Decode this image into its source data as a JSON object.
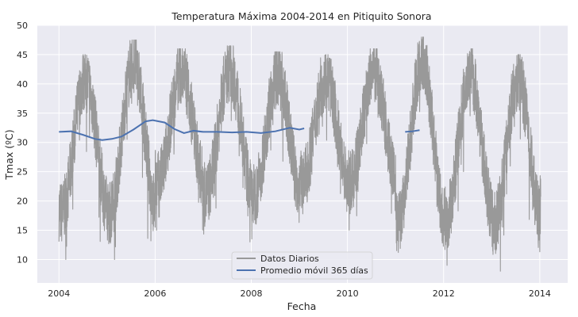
{
  "chart_data": {
    "type": "line",
    "title": "Temperatura Máxima 2004-2014 en Pitiquito Sonora",
    "xlabel": "Fecha",
    "ylabel": "Tmax (ºC)",
    "xlim": [
      2003.55,
      2014.58
    ],
    "ylim": [
      6,
      50
    ],
    "x_ticks": [
      2004,
      2006,
      2008,
      2010,
      2012,
      2014
    ],
    "x_tick_labels": [
      "2004",
      "2006",
      "2008",
      "2010",
      "2012",
      "2014"
    ],
    "y_ticks": [
      10,
      15,
      20,
      25,
      30,
      35,
      40,
      45,
      50
    ],
    "y_tick_labels": [
      "10",
      "15",
      "20",
      "25",
      "30",
      "35",
      "40",
      "45",
      "50"
    ],
    "grid": true,
    "legend_position": "lower-center",
    "colors": {
      "background": "#eaeaf2",
      "grid": "#ffffff",
      "daily": "#999999",
      "rolling": "#4c72b0"
    },
    "series": [
      {
        "name": "Datos Diarios",
        "style": "daily-noisy",
        "summer_peaks": [
          {
            "year": 2004,
            "min": 10,
            "max": 45
          },
          {
            "year": 2005,
            "min": 10,
            "max": 47.5
          },
          {
            "year": 2006,
            "min": 15,
            "max": 46
          },
          {
            "year": 2007,
            "min": 13,
            "max": 46.5
          },
          {
            "year": 2008,
            "min": 13,
            "max": 45.5
          },
          {
            "year": 2009,
            "min": 15,
            "max": 45
          },
          {
            "year": 2010,
            "min": 15,
            "max": 46
          },
          {
            "year": 2011,
            "min": 8,
            "max": 48
          },
          {
            "year": 2012,
            "min": 9,
            "max": 46
          },
          {
            "year": 2013,
            "min": 8,
            "max": 45
          },
          {
            "year": 2014,
            "min": 11,
            "max": 26
          }
        ],
        "x_start": 2004.0,
        "x_end": 2014.02
      },
      {
        "name": "Promedio móvil 365 días",
        "x": [
          2004.0,
          2004.25,
          2004.5,
          2004.75,
          2004.9,
          2005.1,
          2005.3,
          2005.55,
          2005.8,
          2005.95,
          2006.2,
          2006.4,
          2006.6,
          2006.8,
          2007.0,
          2007.3,
          2007.6,
          2007.9,
          2008.2,
          2008.5,
          2008.8,
          2009.0,
          2009.1
        ],
        "values": [
          31.8,
          31.9,
          31.3,
          30.6,
          30.4,
          30.6,
          31.0,
          32.2,
          33.6,
          33.8,
          33.4,
          32.3,
          31.6,
          32.0,
          31.8,
          31.8,
          31.7,
          31.8,
          31.6,
          31.9,
          32.5,
          32.2,
          32.4
        ],
        "x2": [
          2011.2,
          2011.35,
          2011.5
        ],
        "values2": [
          31.8,
          31.9,
          32.1
        ]
      }
    ]
  }
}
